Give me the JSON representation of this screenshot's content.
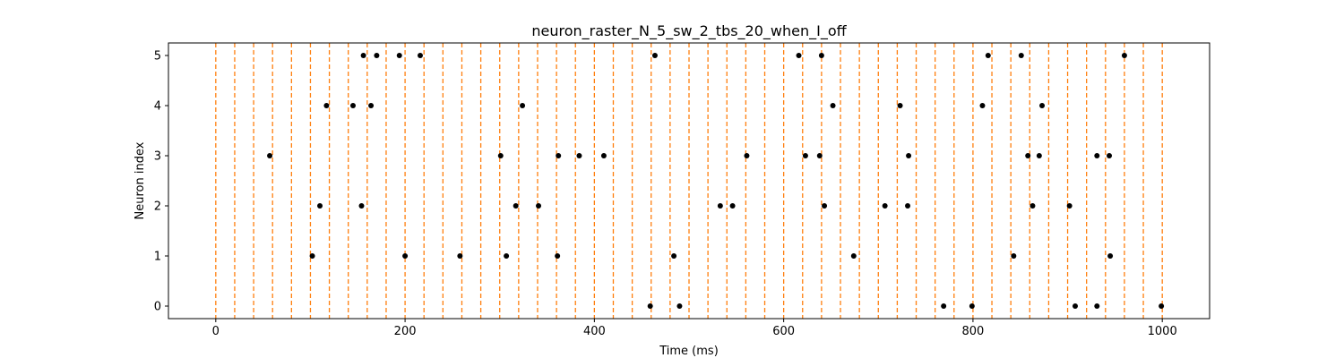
{
  "chart_data": {
    "type": "scatter",
    "title": "neuron_raster_N_5_sw_2_tbs_20_when_I_off",
    "xlabel": "Time (ms)",
    "ylabel": "Neuron index",
    "xlim": [
      -50,
      1050
    ],
    "ylim": [
      -0.25,
      5.25
    ],
    "xticks": [
      0,
      200,
      400,
      600,
      800,
      1000
    ],
    "yticks": [
      0,
      1,
      2,
      3,
      4,
      5
    ],
    "xtick_labels": [
      "0",
      "200",
      "400",
      "600",
      "800",
      "1000"
    ],
    "ytick_labels": [
      "0",
      "1",
      "2",
      "3",
      "4",
      "5"
    ],
    "grid": false,
    "marker_color": "#000000",
    "vline_color": "#ff7f0e",
    "vline_style": "dashed",
    "vlines_x": [
      0,
      20,
      40,
      60,
      80,
      100,
      120,
      140,
      160,
      180,
      200,
      220,
      240,
      260,
      280,
      300,
      320,
      340,
      360,
      380,
      400,
      420,
      440,
      460,
      480,
      500,
      520,
      540,
      560,
      580,
      600,
      620,
      640,
      660,
      680,
      700,
      720,
      740,
      760,
      780,
      800,
      820,
      840,
      860,
      880,
      900,
      920,
      940,
      960,
      980,
      1000
    ],
    "spikes": [
      {
        "neuron": 0,
        "times": [
          459,
          490,
          769,
          799,
          908,
          931,
          999
        ]
      },
      {
        "neuron": 1,
        "times": [
          102,
          200,
          258,
          307,
          361,
          484,
          674,
          843,
          945
        ]
      },
      {
        "neuron": 2,
        "times": [
          110,
          154,
          317,
          341,
          533,
          546,
          643,
          707,
          731,
          863,
          902
        ]
      },
      {
        "neuron": 3,
        "times": [
          57,
          301,
          362,
          384,
          410,
          561,
          623,
          638,
          732,
          858,
          870,
          931,
          944
        ]
      },
      {
        "neuron": 4,
        "times": [
          117,
          145,
          164,
          324,
          652,
          723,
          810,
          873
        ]
      },
      {
        "neuron": 5,
        "times": [
          156,
          170,
          194,
          216,
          464,
          616,
          640,
          816,
          851,
          960
        ]
      }
    ]
  }
}
